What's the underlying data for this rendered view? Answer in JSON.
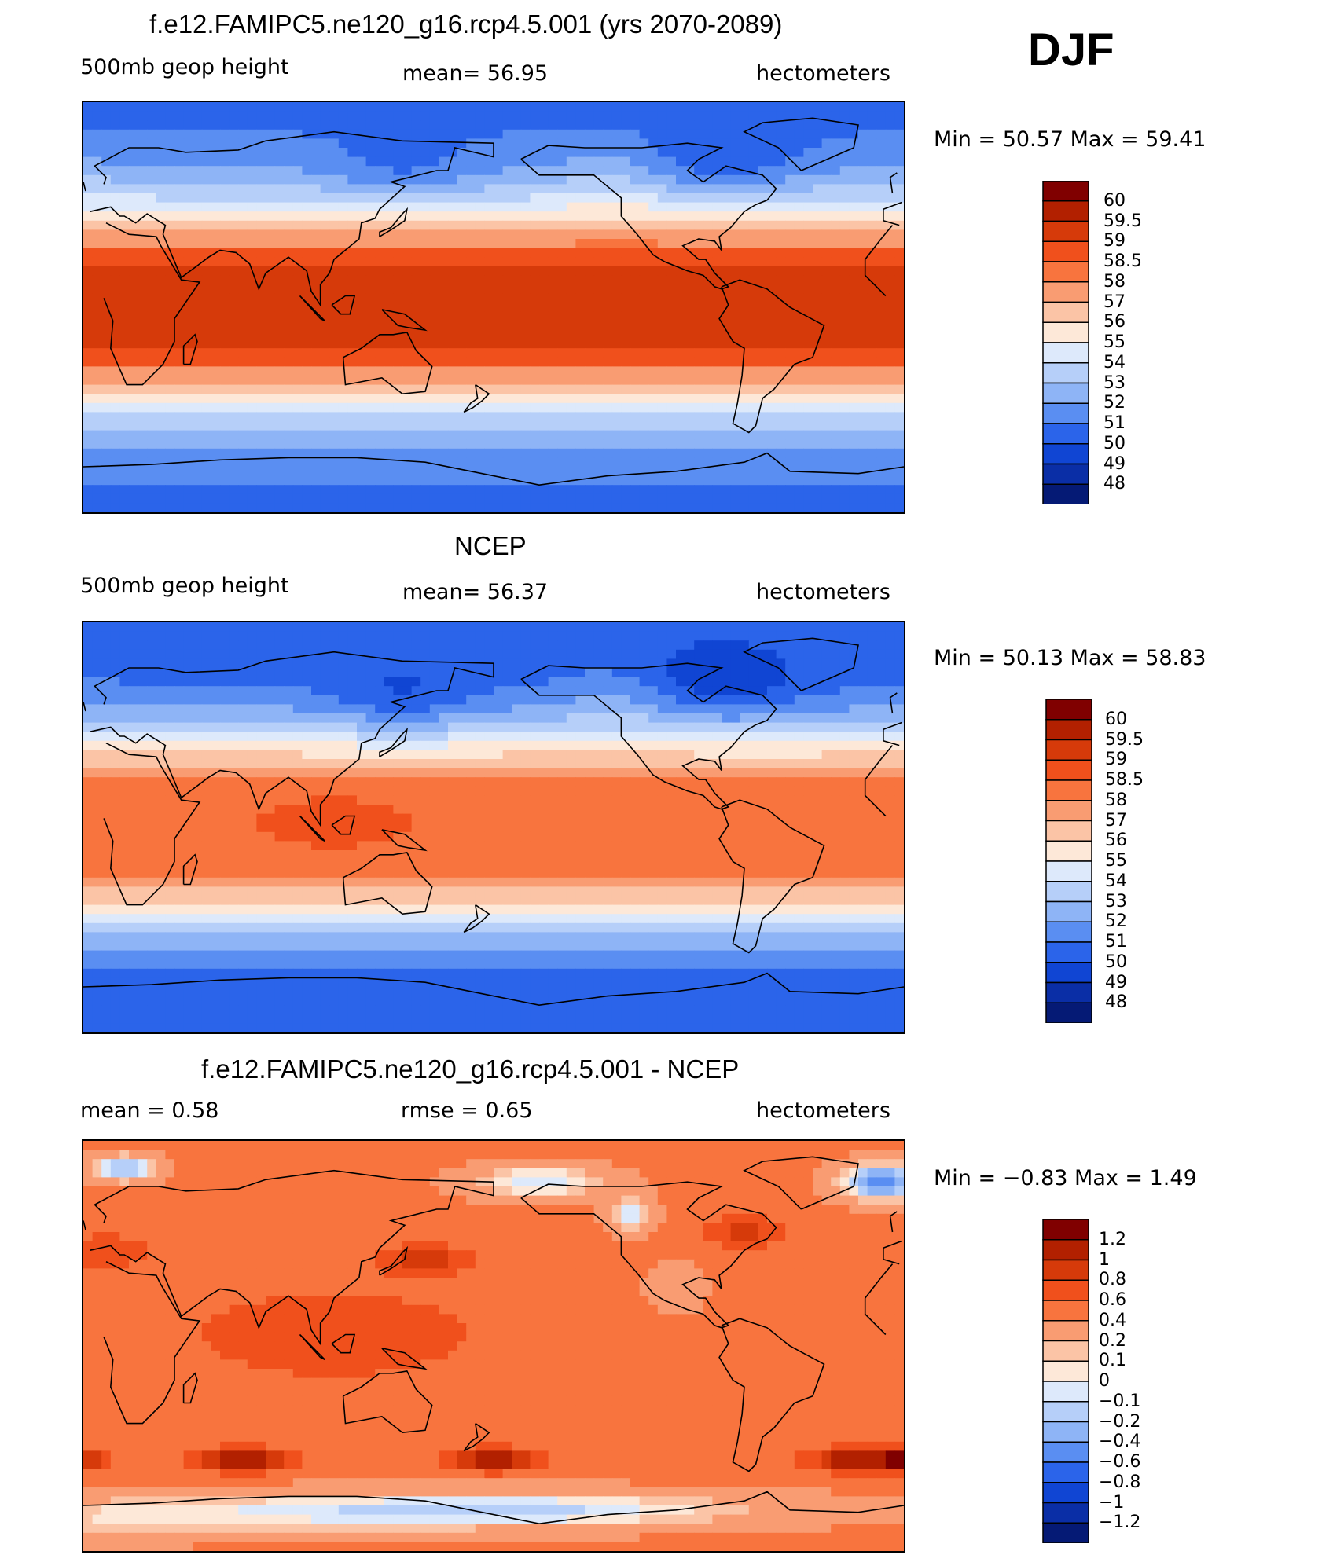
{
  "season": "DJF",
  "chart_data": [
    {
      "type": "heatmap",
      "title": "f.e12.FAMIPC5.ne120_g16.rcp4.5.001 (yrs 2070-2089)",
      "left_label": "500mb geop height",
      "center_label": "mean=  56.95",
      "units": "hectometers",
      "min_label": "Min =",
      "min_value": "50.57",
      "max_label": "Max =",
      "max_value": "59.41",
      "stats_text": "Min =   50.57  Max =   59.41",
      "field": "model",
      "legend_levels": [
        "60",
        "59.5",
        "59",
        "58.5",
        "58",
        "57",
        "56",
        "55",
        "54",
        "53",
        "52",
        "51",
        "50",
        "49",
        "48"
      ],
      "legend_colors": [
        "#800000",
        "#b22000",
        "#d63a0a",
        "#f0501c",
        "#f8743e",
        "#f99c72",
        "#fbc4a6",
        "#fde8d8",
        "#dde9fb",
        "#b6cff9",
        "#8eb4f6",
        "#5a8ef2",
        "#2b64ea",
        "#1045d3",
        "#0a2ea6",
        "#051a75"
      ]
    },
    {
      "type": "heatmap",
      "title": "NCEP",
      "left_label": "500mb geop height",
      "center_label": "mean=  56.37",
      "units": "hectometers",
      "min_label": "Min =",
      "min_value": "50.13",
      "max_label": "Max =",
      "max_value": "58.83",
      "stats_text": "Min =   50.13  Max =   58.83",
      "field": "obs",
      "legend_levels": [
        "60",
        "59.5",
        "59",
        "58.5",
        "58",
        "57",
        "56",
        "55",
        "54",
        "53",
        "52",
        "51",
        "50",
        "49",
        "48"
      ],
      "legend_colors": [
        "#800000",
        "#b22000",
        "#d63a0a",
        "#f0501c",
        "#f8743e",
        "#f99c72",
        "#fbc4a6",
        "#fde8d8",
        "#dde9fb",
        "#b6cff9",
        "#8eb4f6",
        "#5a8ef2",
        "#2b64ea",
        "#1045d3",
        "#0a2ea6",
        "#051a75"
      ]
    },
    {
      "type": "heatmap",
      "title": "f.e12.FAMIPC5.ne120_g16.rcp4.5.001 - NCEP",
      "left_label": "mean =     0.58",
      "center_label": "rmse =     0.65",
      "units": "hectometers",
      "min_label": "Min =",
      "min_value": "−0.83",
      "max_label": "Max =",
      "max_value": "1.49",
      "stats_text": "Min =   −0.83  Max =      1.49",
      "field": "diff",
      "legend_levels": [
        "1.2",
        "1",
        "0.8",
        "0.6",
        "0.4",
        "0.2",
        "0.1",
        "0",
        "−0.1",
        "−0.2",
        "−0.4",
        "−0.6",
        "−0.8",
        "−1",
        "−1.2"
      ],
      "legend_colors": [
        "#800000",
        "#b22000",
        "#d63a0a",
        "#f0501c",
        "#f8743e",
        "#f99c72",
        "#fbc4a6",
        "#fde8d8",
        "#dde9fb",
        "#b6cff9",
        "#8eb4f6",
        "#5a8ef2",
        "#2b64ea",
        "#1045d3",
        "#0a2ea6",
        "#051a75"
      ]
    }
  ]
}
